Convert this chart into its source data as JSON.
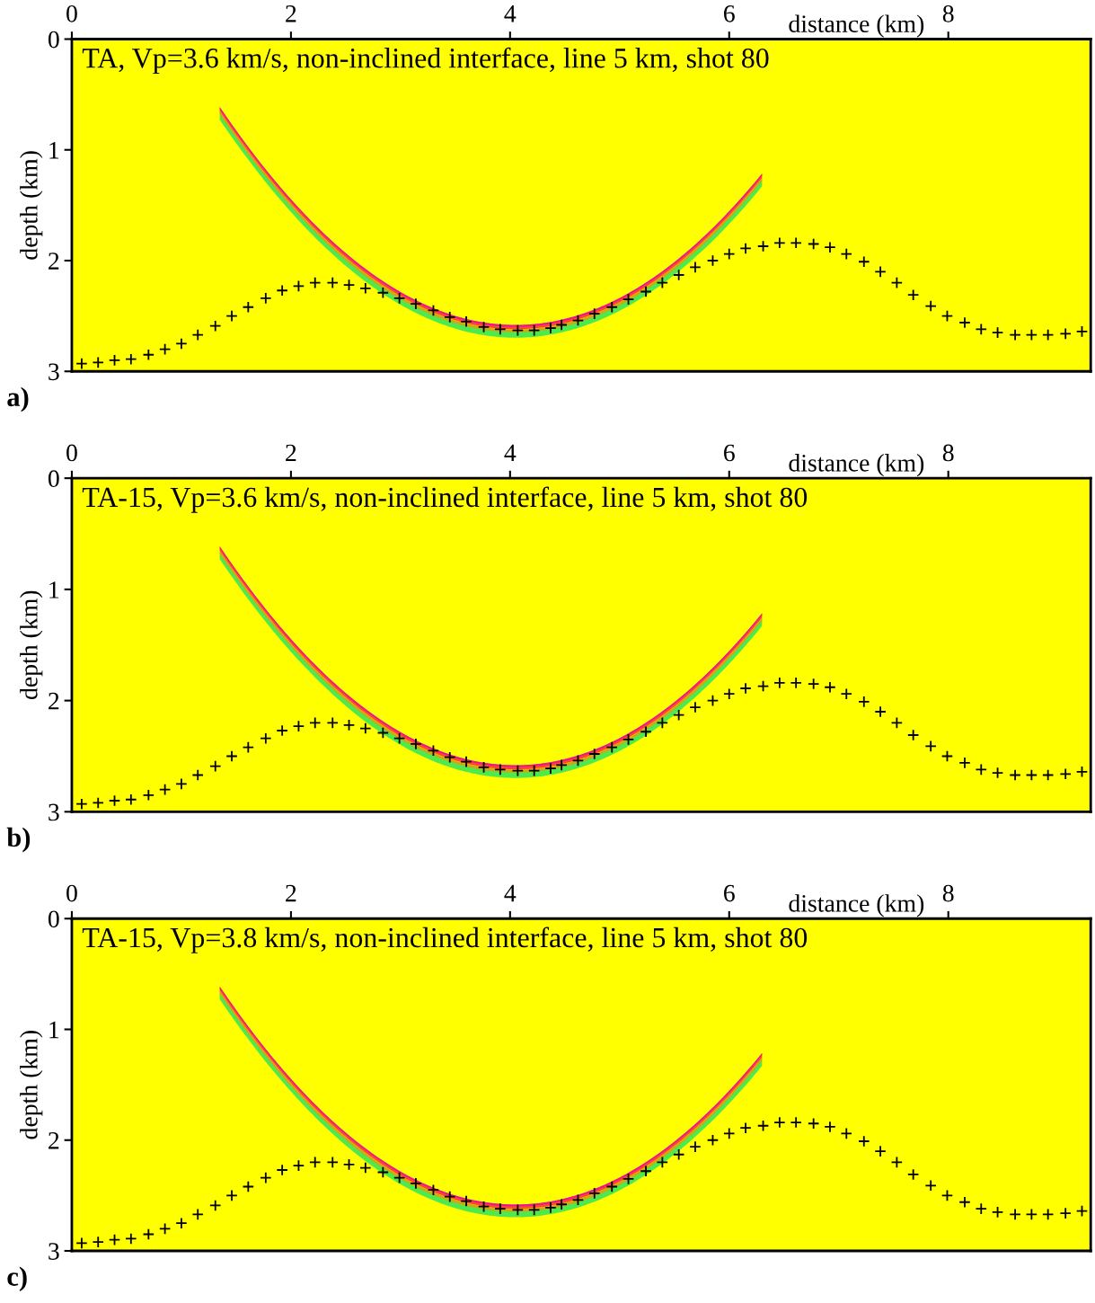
{
  "chart_data": [
    {
      "type": "scatter",
      "title": "TA, Vp=3.6 km/s, non-inclined interface, line 5 km, shot 80",
      "xlabel": "distance (km)",
      "ylabel": "depth (km)",
      "xlim": [
        0,
        9.3
      ],
      "ylim": [
        3,
        0
      ],
      "xticks": [
        0,
        2,
        4,
        6,
        8
      ],
      "yticks": [
        0,
        1,
        2,
        3
      ],
      "marker": "cross",
      "annotations": [
        "a)"
      ],
      "series": [
        {
          "color": "#000000",
          "x": [
            0.09,
            0.24,
            0.39,
            0.54,
            0.7,
            0.85,
            1.0,
            1.15,
            1.31,
            1.46,
            1.61,
            1.77,
            1.92,
            2.07,
            2.22,
            2.38,
            2.53,
            2.68,
            2.84,
            2.99,
            3.14,
            3.3,
            3.45,
            3.6,
            3.76,
            3.91,
            4.07,
            4.22,
            4.37,
            4.47,
            4.62,
            4.77,
            4.93,
            5.08,
            5.24,
            5.39,
            5.54,
            5.69,
            5.85,
            6.0,
            6.15,
            6.31,
            6.46,
            6.61,
            6.77,
            6.92,
            7.07,
            7.23,
            7.38,
            7.53,
            7.68,
            7.84,
            7.99,
            8.15,
            8.3,
            8.45,
            8.61,
            8.76,
            8.91,
            9.07,
            9.22
          ],
          "values": [
            2.93,
            2.92,
            2.9,
            2.89,
            2.85,
            2.8,
            2.75,
            2.67,
            2.59,
            2.5,
            2.42,
            2.34,
            2.27,
            2.23,
            2.2,
            2.2,
            2.22,
            2.25,
            2.29,
            2.34,
            2.39,
            2.45,
            2.51,
            2.55,
            2.6,
            2.62,
            2.63,
            2.63,
            2.61,
            2.58,
            2.54,
            2.48,
            2.42,
            2.35,
            2.28,
            2.2,
            2.13,
            2.06,
            2.0,
            1.94,
            1.89,
            1.87,
            1.84,
            1.84,
            1.85,
            1.88,
            1.94,
            2.01,
            2.1,
            2.2,
            2.31,
            2.41,
            2.5,
            2.56,
            2.62,
            2.65,
            2.67,
            2.67,
            2.67,
            2.66,
            2.64
          ]
        }
      ]
    },
    {
      "type": "scatter",
      "title": "TA-15, Vp=3.6 km/s, non-inclined interface, line 5 km, shot 80",
      "xlabel": "distance (km)",
      "ylabel": "depth (km)",
      "xlim": [
        0,
        9.3
      ],
      "ylim": [
        3,
        0
      ],
      "xticks": [
        0,
        2,
        4,
        6,
        8
      ],
      "yticks": [
        0,
        1,
        2,
        3
      ],
      "marker": "cross",
      "annotations": [
        "b)"
      ],
      "series": [
        {
          "color": "#000000",
          "x": [
            0.09,
            0.24,
            0.39,
            0.54,
            0.7,
            0.85,
            1.0,
            1.15,
            1.31,
            1.46,
            1.61,
            1.77,
            1.92,
            2.07,
            2.22,
            2.38,
            2.53,
            2.68,
            2.84,
            2.99,
            3.14,
            3.3,
            3.45,
            3.6,
            3.76,
            3.91,
            4.07,
            4.22,
            4.37,
            4.47,
            4.62,
            4.77,
            4.93,
            5.08,
            5.24,
            5.39,
            5.54,
            5.69,
            5.85,
            6.0,
            6.15,
            6.31,
            6.46,
            6.61,
            6.77,
            6.92,
            7.07,
            7.23,
            7.38,
            7.53,
            7.68,
            7.84,
            7.99,
            8.15,
            8.3,
            8.45,
            8.61,
            8.76,
            8.91,
            9.07,
            9.22
          ],
          "values": [
            2.93,
            2.92,
            2.9,
            2.89,
            2.85,
            2.8,
            2.75,
            2.67,
            2.59,
            2.5,
            2.42,
            2.34,
            2.27,
            2.23,
            2.2,
            2.2,
            2.22,
            2.25,
            2.29,
            2.34,
            2.39,
            2.45,
            2.51,
            2.55,
            2.6,
            2.62,
            2.63,
            2.63,
            2.61,
            2.58,
            2.54,
            2.48,
            2.42,
            2.35,
            2.28,
            2.2,
            2.13,
            2.06,
            2.0,
            1.94,
            1.89,
            1.87,
            1.84,
            1.84,
            1.85,
            1.88,
            1.94,
            2.01,
            2.1,
            2.2,
            2.31,
            2.41,
            2.5,
            2.56,
            2.62,
            2.65,
            2.67,
            2.67,
            2.67,
            2.66,
            2.64
          ]
        }
      ]
    },
    {
      "type": "scatter",
      "title": "TA-15, Vp=3.8 km/s, non-inclined interface, line 5 km, shot 80",
      "xlabel": "distance (km)",
      "ylabel": "depth (km)",
      "xlim": [
        0,
        9.3
      ],
      "ylim": [
        3,
        0
      ],
      "xticks": [
        0,
        2,
        4,
        6,
        8
      ],
      "yticks": [
        0,
        1,
        2,
        3
      ],
      "marker": "cross",
      "annotations": [
        "c)"
      ],
      "series": [
        {
          "color": "#000000",
          "x": [
            0.09,
            0.24,
            0.39,
            0.54,
            0.7,
            0.85,
            1.0,
            1.15,
            1.31,
            1.46,
            1.61,
            1.77,
            1.92,
            2.07,
            2.22,
            2.38,
            2.53,
            2.68,
            2.84,
            2.99,
            3.14,
            3.3,
            3.45,
            3.6,
            3.76,
            3.91,
            4.07,
            4.22,
            4.37,
            4.47,
            4.62,
            4.77,
            4.93,
            5.08,
            5.24,
            5.39,
            5.54,
            5.69,
            5.85,
            6.0,
            6.15,
            6.31,
            6.46,
            6.61,
            6.77,
            6.92,
            7.07,
            7.23,
            7.38,
            7.53,
            7.68,
            7.84,
            7.99,
            8.15,
            8.3,
            8.45,
            8.61,
            8.76,
            8.91,
            9.07,
            9.22
          ],
          "values": [
            2.93,
            2.92,
            2.9,
            2.89,
            2.85,
            2.8,
            2.75,
            2.67,
            2.59,
            2.5,
            2.42,
            2.34,
            2.27,
            2.23,
            2.2,
            2.2,
            2.22,
            2.25,
            2.29,
            2.34,
            2.39,
            2.45,
            2.51,
            2.55,
            2.6,
            2.62,
            2.63,
            2.63,
            2.61,
            2.58,
            2.54,
            2.48,
            2.42,
            2.35,
            2.28,
            2.2,
            2.13,
            2.06,
            2.0,
            1.94,
            1.89,
            1.87,
            1.84,
            1.84,
            1.85,
            1.88,
            1.94,
            2.01,
            2.1,
            2.2,
            2.31,
            2.41,
            2.5,
            2.56,
            2.62,
            2.65,
            2.67,
            2.67,
            2.67,
            2.66,
            2.64
          ]
        }
      ]
    }
  ]
}
